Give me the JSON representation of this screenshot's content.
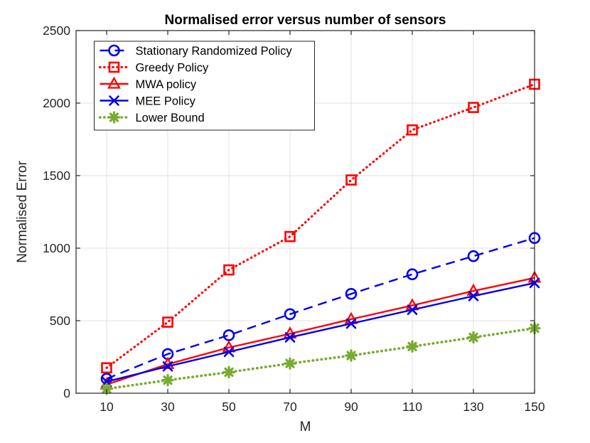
{
  "figure": {
    "title": "Normalised error versus number of sensors",
    "xlabel": "M",
    "ylabel": "Normalised Error"
  },
  "chart_data": {
    "type": "line",
    "title": "Normalised error versus number of sensors",
    "xlabel": "M",
    "ylabel": "Normalised Error",
    "xlim": [
      0,
      150
    ],
    "ylim": [
      0,
      2500
    ],
    "xticks": [
      10,
      30,
      50,
      70,
      90,
      110,
      130,
      150
    ],
    "yticks": [
      0,
      500,
      1000,
      1500,
      2000,
      2500
    ],
    "grid": true,
    "legend_position": "top-left",
    "x": [
      10,
      30,
      50,
      70,
      90,
      110,
      130,
      150
    ],
    "series": [
      {
        "name": "Stationary Randomized Policy",
        "color": "#0000EE",
        "line_style": "dashed",
        "marker": "circle",
        "values": [
          100,
          270,
          400,
          545,
          685,
          820,
          945,
          1070
        ]
      },
      {
        "name": "Greedy Policy",
        "color": "#FF0000",
        "line_style": "dotted",
        "marker": "square",
        "values": [
          175,
          490,
          850,
          1080,
          1470,
          1815,
          1970,
          2130
        ]
      },
      {
        "name": "MWA policy",
        "color": "#FF0000",
        "line_style": "solid",
        "marker": "triangle",
        "values": [
          60,
          200,
          315,
          410,
          510,
          605,
          705,
          795
        ]
      },
      {
        "name": "MEE Policy",
        "color": "#0000EE",
        "line_style": "solid",
        "marker": "x",
        "values": [
          80,
          185,
          285,
          385,
          480,
          575,
          670,
          760
        ]
      },
      {
        "name": "Lower Bound",
        "color": "#77AC30",
        "line_style": "dotted",
        "marker": "asterisk",
        "values": [
          30,
          90,
          145,
          205,
          260,
          322,
          385,
          448
        ]
      }
    ],
    "colors": {
      "background": "#FFFFFF",
      "axis": "#262626",
      "grid": "#E0E0E0",
      "blue": "#0000EE",
      "red": "#FF0000",
      "green": "#77AC30"
    }
  }
}
